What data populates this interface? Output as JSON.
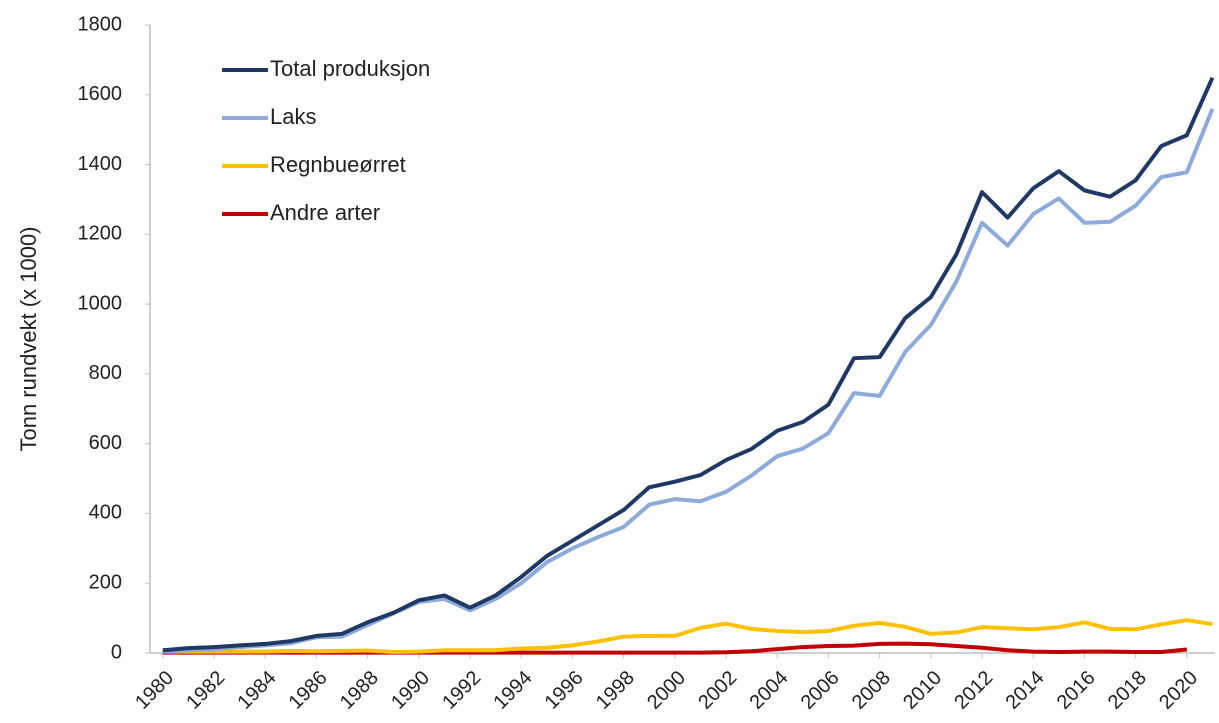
{
  "chart_data": {
    "type": "line",
    "y_label": "Tonn rundvekt (x 1000)",
    "x": [
      1980,
      1981,
      1982,
      1983,
      1984,
      1985,
      1986,
      1987,
      1988,
      1989,
      1990,
      1991,
      1992,
      1993,
      1994,
      1995,
      1996,
      1997,
      1998,
      1999,
      2000,
      2001,
      2002,
      2003,
      2004,
      2005,
      2006,
      2007,
      2008,
      2009,
      2010,
      2011,
      2012,
      2013,
      2014,
      2015,
      2016,
      2017,
      2018,
      2019,
      2020,
      2021
    ],
    "series": [
      {
        "name": "Total produksjon",
        "color": "#1f3864",
        "values": [
          8,
          14,
          17,
          22,
          26,
          34,
          49,
          55,
          88,
          115,
          151,
          165,
          130,
          165,
          218,
          278,
          322,
          366,
          410,
          475,
          491,
          510,
          553,
          585,
          637,
          662,
          712,
          845,
          848,
          960,
          1020,
          1143,
          1321,
          1248,
          1332,
          1381,
          1326,
          1308,
          1355,
          1453,
          1484,
          1649
        ]
      },
      {
        "name": "Laks",
        "color": "#8eaadb",
        "values": [
          4,
          8,
          10,
          17,
          22,
          28,
          45,
          47,
          80,
          113,
          146,
          155,
          122,
          155,
          200,
          260,
          300,
          332,
          361,
          425,
          441,
          435,
          462,
          509,
          564,
          586,
          630,
          745,
          737,
          863,
          940,
          1065,
          1233,
          1168,
          1258,
          1303,
          1233,
          1236,
          1282,
          1364,
          1378,
          1560
        ]
      },
      {
        "name": "Regnbueørret",
        "color": "#ffc000",
        "values": [
          4,
          4,
          4,
          4,
          4,
          6,
          5,
          6,
          7,
          3,
          4,
          8,
          8,
          8,
          13,
          15,
          22,
          33,
          47,
          49,
          49,
          72,
          84,
          69,
          63,
          60,
          63,
          78,
          86,
          75,
          55,
          59,
          74,
          71,
          68,
          74,
          88,
          69,
          68,
          82,
          94,
          83
        ]
      },
      {
        "name": "Andre arter",
        "color": "#c00000",
        "values": [
          1,
          1,
          1,
          1,
          1,
          1,
          1,
          1,
          1,
          1,
          1,
          1,
          1,
          1,
          1,
          1,
          1,
          1,
          1,
          1,
          1,
          1,
          2,
          5,
          11,
          17,
          20,
          21,
          26,
          27,
          25,
          20,
          15,
          8,
          4,
          3,
          4,
          4,
          3,
          3,
          10,
          null
        ]
      }
    ],
    "xlim": [
      1979.5,
      2021.1
    ],
    "xticks": [
      1980,
      1982,
      1984,
      1986,
      1988,
      1990,
      1992,
      1994,
      1996,
      1998,
      2000,
      2002,
      2004,
      2006,
      2008,
      2010,
      2012,
      2014,
      2016,
      2018,
      2020
    ],
    "ylim": [
      0,
      1800
    ],
    "yticks": [
      0,
      200,
      400,
      600,
      800,
      1000,
      1200,
      1400,
      1600,
      1800
    ],
    "legend": "upper left"
  }
}
